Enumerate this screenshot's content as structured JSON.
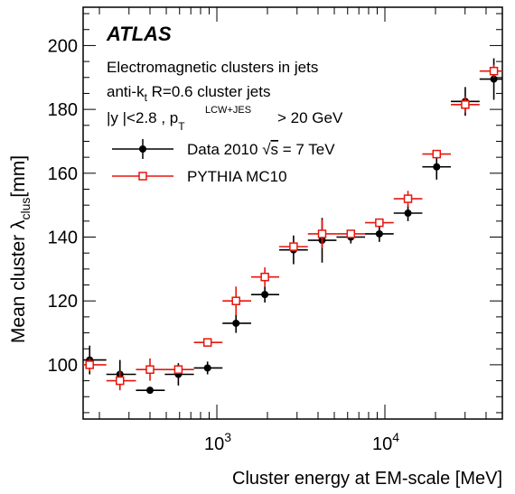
{
  "chart_data": {
    "type": "scatter",
    "xscale": "log",
    "xlim": [
      160,
      50000
    ],
    "ylim": [
      83,
      212
    ],
    "xlabel": "Cluster energy at EM-scale [MeV]",
    "ylabel_main": "Mean cluster λ",
    "ylabel_sub": "clus",
    "ylabel_unit": "[mm]",
    "yticks": [
      100,
      120,
      140,
      160,
      180,
      200
    ],
    "xticks": [
      {
        "value": 1000,
        "base": "10",
        "exp": "3"
      },
      {
        "value": 10000,
        "base": "10",
        "exp": "4"
      }
    ],
    "annotations": {
      "experiment": "ATLAS",
      "line1": "Electromagnetic clusters in jets",
      "line2_a": "anti-k",
      "line2_sub": "t",
      "line2_b": " R=0.6 cluster jets",
      "line3_a": "|y |<2.8  , p",
      "line3_sub": "T",
      "line3_sup": "LCW+JES",
      "line3_b": "> 20 GeV"
    },
    "series": [
      {
        "name": "Data 2010 √s = 7 TeV",
        "legend_a": "Data 2010 ",
        "legend_sqrt": "√",
        "legend_s": "s",
        "legend_b": " = 7 TeV",
        "color": "#000000",
        "marker": "filled-circle",
        "points": [
          {
            "x": 175,
            "y": 101.5,
            "xlo": 160,
            "xhi": 220,
            "err": 4.5
          },
          {
            "x": 265,
            "y": 97,
            "xlo": 220,
            "xhi": 330,
            "err": 4.5
          },
          {
            "x": 400,
            "y": 92,
            "xlo": 330,
            "xhi": 490,
            "err": 1
          },
          {
            "x": 590,
            "y": 97,
            "xlo": 490,
            "xhi": 730,
            "err": 3.5
          },
          {
            "x": 880,
            "y": 99,
            "xlo": 730,
            "xhi": 1080,
            "err": 2
          },
          {
            "x": 1300,
            "y": 113,
            "xlo": 1080,
            "xhi": 1600,
            "err": 3
          },
          {
            "x": 1930,
            "y": 122,
            "xlo": 1600,
            "xhi": 2350,
            "err": 2.5
          },
          {
            "x": 2860,
            "y": 136,
            "xlo": 2350,
            "xhi": 3480,
            "err": 4.5
          },
          {
            "x": 4230,
            "y": 139,
            "xlo": 3480,
            "xhi": 5150,
            "err": 7
          },
          {
            "x": 6270,
            "y": 140,
            "xlo": 5150,
            "xhi": 7620,
            "err": 2
          },
          {
            "x": 9270,
            "y": 141,
            "xlo": 7620,
            "xhi": 11280,
            "err": 2.5
          },
          {
            "x": 13720,
            "y": 147.5,
            "xlo": 11280,
            "xhi": 16700,
            "err": 2.5
          },
          {
            "x": 20320,
            "y": 162,
            "xlo": 16700,
            "xhi": 24700,
            "err": 4
          },
          {
            "x": 30080,
            "y": 182.5,
            "xlo": 24700,
            "xhi": 36600,
            "err": 4.5
          },
          {
            "x": 44500,
            "y": 189.5,
            "xlo": 36600,
            "xhi": 50000,
            "err": 6.5
          }
        ]
      },
      {
        "name": "PYTHIA MC10",
        "color": "#e8150b",
        "marker": "open-square",
        "points": [
          {
            "x": 175,
            "y": 100,
            "xlo": 160,
            "xhi": 220,
            "err": 2
          },
          {
            "x": 265,
            "y": 95,
            "xlo": 220,
            "xhi": 330,
            "err": 3
          },
          {
            "x": 400,
            "y": 98.5,
            "xlo": 330,
            "xhi": 490,
            "err": 3.5
          },
          {
            "x": 590,
            "y": 98.5,
            "xlo": 490,
            "xhi": 730,
            "err": 1
          },
          {
            "x": 880,
            "y": 107,
            "xlo": 730,
            "xhi": 1080,
            "err": 1
          },
          {
            "x": 1300,
            "y": 120,
            "xlo": 1080,
            "xhi": 1600,
            "err": 4.5
          },
          {
            "x": 1930,
            "y": 127.5,
            "xlo": 1600,
            "xhi": 2350,
            "err": 3
          },
          {
            "x": 2860,
            "y": 137,
            "xlo": 2350,
            "xhi": 3480,
            "err": 1.5
          },
          {
            "x": 4230,
            "y": 141,
            "xlo": 3480,
            "xhi": 5150,
            "err": 4.5
          },
          {
            "x": 6270,
            "y": 141,
            "xlo": 5150,
            "xhi": 7620,
            "err": 1
          },
          {
            "x": 9270,
            "y": 144.5,
            "xlo": 7620,
            "xhi": 11280,
            "err": 1
          },
          {
            "x": 13720,
            "y": 152,
            "xlo": 11280,
            "xhi": 16700,
            "err": 2.5
          },
          {
            "x": 20320,
            "y": 166,
            "xlo": 16700,
            "xhi": 24700,
            "err": 1
          },
          {
            "x": 30080,
            "y": 181.5,
            "xlo": 24700,
            "xhi": 36600,
            "err": 2.5
          },
          {
            "x": 44500,
            "y": 192,
            "xlo": 36600,
            "xhi": 50000,
            "err": 2
          }
        ]
      }
    ]
  }
}
